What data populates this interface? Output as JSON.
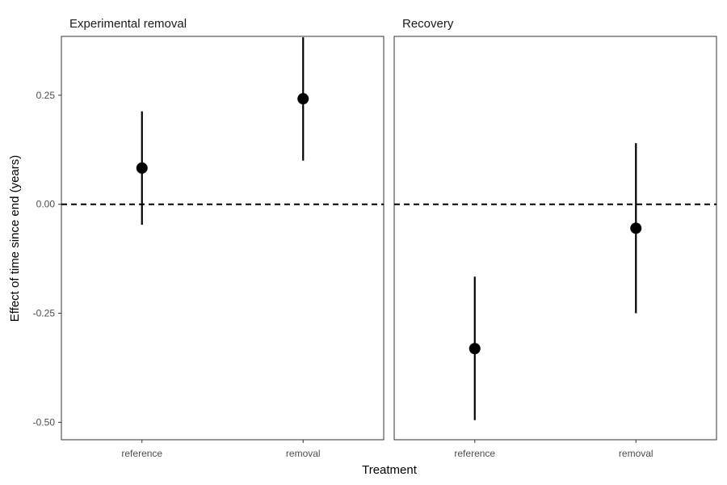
{
  "chart_data": {
    "type": "scatter",
    "subtype": "point-range",
    "xlabel": "Treatment",
    "ylabel": "Effect of time since end (years)",
    "ylim": [
      -0.54,
      0.385
    ],
    "yticks": [
      -0.5,
      -0.25,
      0.0,
      0.25
    ],
    "ytick_labels": [
      "-0.50",
      "-0.25",
      "0.00",
      "0.25"
    ],
    "reference_line": 0.0,
    "grid": false,
    "categories": [
      "reference",
      "removal"
    ],
    "panels": [
      {
        "title": "Experimental removal",
        "points": [
          {
            "category": "reference",
            "estimate": 0.083,
            "lower": -0.047,
            "upper": 0.213
          },
          {
            "category": "removal",
            "estimate": 0.242,
            "lower": 0.1,
            "upper": 0.383
          }
        ]
      },
      {
        "title": "Recovery",
        "points": [
          {
            "category": "reference",
            "estimate": -0.331,
            "lower": -0.495,
            "upper": -0.166
          },
          {
            "category": "removal",
            "estimate": -0.055,
            "lower": -0.25,
            "upper": 0.14
          }
        ]
      }
    ]
  },
  "colors": {
    "points": "#000000",
    "panel_border": "#333333",
    "reference_line": "#000000",
    "tick_text": "#4d4d4d"
  }
}
